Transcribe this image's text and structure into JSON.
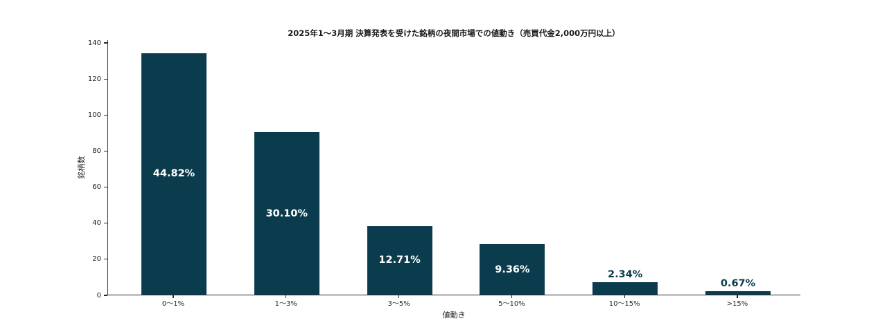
{
  "chart_data": {
    "type": "bar",
    "title": "2025年1〜3月期 決算発表を受けた銘柄の夜間市場での値動き（売買代金2,000万円以上）",
    "xlabel": "値動き",
    "ylabel": "銘柄数",
    "categories": [
      "0〜1%",
      "1〜3%",
      "3〜5%",
      "5〜10%",
      "10〜15%",
      ">15%"
    ],
    "values": [
      134,
      90,
      38,
      28,
      7,
      2
    ],
    "bar_labels": [
      "44.82%",
      "30.10%",
      "12.71%",
      "9.36%",
      "2.34%",
      "0.67%"
    ],
    "bar_label_placement": [
      "inside",
      "inside",
      "inside",
      "inside",
      "above",
      "above"
    ],
    "ylim": [
      0,
      140
    ],
    "yticks": [
      0,
      20,
      40,
      60,
      80,
      100,
      120,
      140
    ],
    "grid": false,
    "legend_position": "none",
    "colors": {
      "bar": "#0b3c4d",
      "label_inside": "#ffffff",
      "label_above": "#0b3c4d",
      "axis": "#262626",
      "title_text": "#1a1a1a"
    }
  }
}
